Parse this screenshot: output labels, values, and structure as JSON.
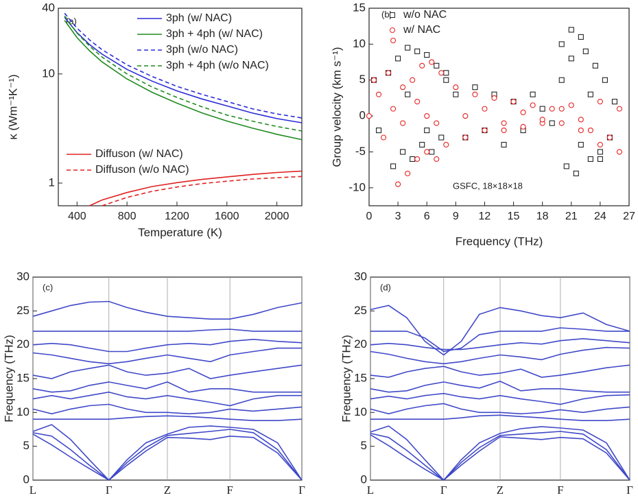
{
  "chart_data": [
    {
      "type": "line",
      "log_y": true,
      "xlabel": "Temperature (K)",
      "ylabel": "κ (Wm⁻¹K⁻¹)",
      "annotations": [
        "(a)"
      ],
      "x": [
        300,
        400,
        500,
        600,
        800,
        1000,
        1200,
        1400,
        1600,
        1800,
        2000,
        2200
      ],
      "xlim": [
        250,
        2200
      ],
      "xticks": [
        400,
        800,
        1200,
        1600,
        2000
      ],
      "ylim": [
        0.62,
        40
      ],
      "yticks": [
        1,
        10,
        40
      ],
      "series": [
        {
          "name": "3ph (w/ NAC)",
          "color": "#2b2bd6",
          "dashed": false,
          "legend_loc": "upper right",
          "values": [
            33,
            23.9,
            18.6,
            15.2,
            11.0,
            8.6,
            7.0,
            5.9,
            5.1,
            4.4,
            3.9,
            3.57
          ]
        },
        {
          "name": "3ph + 4ph (w/ NAC)",
          "color": "#1f8a1f",
          "dashed": false,
          "legend_loc": "upper right",
          "values": [
            31,
            21.5,
            16.3,
            12.9,
            9.0,
            6.8,
            5.4,
            4.4,
            3.7,
            3.2,
            2.8,
            2.5
          ]
        },
        {
          "name": "3ph (w/o NAC)",
          "color": "#2b2bd6",
          "dashed": true,
          "legend_loc": "upper right",
          "values": [
            36,
            26.3,
            20.5,
            16.7,
            12.1,
            9.5,
            7.7,
            6.5,
            5.6,
            4.8,
            4.3,
            3.95
          ]
        },
        {
          "name": "3ph + 4ph (w/o NAC)",
          "color": "#1f8a1f",
          "dashed": true,
          "legend_loc": "upper right",
          "values": [
            34,
            23.7,
            18,
            14.3,
            10,
            7.6,
            6.1,
            5.0,
            4.2,
            3.7,
            3.3,
            3.0
          ]
        },
        {
          "name": "Diffuson (w/ NAC)",
          "color": "#e02020",
          "dashed": false,
          "legend_loc": "lower left",
          "values": [
            null,
            null,
            0.62,
            0.7,
            0.82,
            0.93,
            1.01,
            1.08,
            1.14,
            1.2,
            1.25,
            1.29
          ]
        },
        {
          "name": "Diffuson (w/o NAC)",
          "color": "#e02020",
          "dashed": true,
          "legend_loc": "lower left",
          "values": [
            null,
            null,
            null,
            0.62,
            0.74,
            0.84,
            0.92,
            0.99,
            1.04,
            1.09,
            1.12,
            1.15
          ]
        }
      ]
    },
    {
      "type": "scatter",
      "xlabel": "Frequency (THz)",
      "ylabel": "Group velocity (km s⁻¹)",
      "annotations": [
        "(b)",
        "GSFC, 18×18×18"
      ],
      "xlim": [
        0,
        27
      ],
      "xticks": [
        0,
        3,
        6,
        9,
        12,
        15,
        18,
        21,
        24,
        27
      ],
      "ylim": [
        -12.5,
        15
      ],
      "yticks": [
        -10,
        -5,
        0,
        5,
        10,
        15
      ],
      "legend": "upper left",
      "series": [
        {
          "name": "w/o NAC",
          "color": "#222222",
          "marker": "square",
          "x": [
            0.5,
            1,
            2,
            3,
            3.5,
            4,
            4.5,
            5,
            5.5,
            6,
            6.5,
            7,
            7.5,
            8,
            9,
            10,
            11,
            12,
            13,
            14,
            15,
            16,
            17,
            18,
            19,
            20,
            20.5,
            21,
            21.5,
            22,
            22.5,
            23,
            23.5,
            24,
            24.5,
            25,
            25.5,
            2.5,
            4,
            6,
            8,
            20,
            21,
            22,
            23,
            24
          ],
          "values": [
            5,
            -2,
            6,
            8,
            -5,
            9.5,
            -6,
            9,
            -4,
            8.5,
            -5,
            7,
            -3,
            6,
            3,
            -3,
            4,
            -2,
            3,
            -4,
            2,
            -2,
            3,
            1,
            -1,
            10,
            -7,
            12,
            -8,
            11,
            9,
            -6,
            7,
            -5,
            5,
            -3,
            2,
            -7,
            3,
            -2,
            5,
            5,
            8,
            -4,
            3,
            -6
          ]
        },
        {
          "name": "w/ NAC",
          "color": "#e82020",
          "marker": "circle",
          "x": [
            0,
            0.5,
            1,
            1.5,
            2,
            2.5,
            3,
            3.5,
            4,
            4.5,
            5,
            5.5,
            6,
            6.5,
            7,
            7.5,
            8,
            9,
            10,
            11,
            12,
            13,
            14,
            15,
            16,
            17,
            18,
            19,
            20,
            21,
            22,
            23,
            24,
            25,
            26,
            2.5,
            3.5,
            5,
            6,
            7,
            10,
            12,
            14,
            16,
            18,
            20,
            22,
            24,
            26
          ],
          "values": [
            0,
            5,
            3,
            -3,
            6,
            10.5,
            -9.5,
            4,
            -8,
            5,
            -6,
            7,
            -5,
            7.5,
            -6,
            6,
            -4,
            4,
            -3,
            3,
            -2,
            2.5,
            -2,
            2,
            -1.5,
            1.5,
            -1,
            1,
            -1,
            1.5,
            -0.5,
            -2,
            2,
            -3,
            1,
            1,
            -1,
            2,
            0,
            -1,
            0,
            1,
            -1,
            0.5,
            -0.5,
            1,
            -2,
            -4,
            -5
          ]
        }
      ]
    },
    {
      "type": "line",
      "ylabel": "Frequency (THz)",
      "annotations": [
        "(c)"
      ],
      "color": "#3f48c8",
      "grid_x": true,
      "x": [
        0,
        0.07,
        0.14,
        0.21,
        0.2825,
        0.35,
        0.42,
        0.5,
        0.58,
        0.66,
        0.7325,
        0.82,
        0.91,
        1
      ],
      "xlim": [
        0,
        1
      ],
      "xticks": [
        {
          "value": 0,
          "label": "L"
        },
        {
          "value": 0.2825,
          "label": "Γ"
        },
        {
          "value": 0.5,
          "label": "Z"
        },
        {
          "value": 0.7325,
          "label": "F"
        },
        {
          "value": 1,
          "label": "Γ"
        }
      ],
      "ylim": [
        0,
        30
      ],
      "yticks": [
        0,
        5,
        10,
        15,
        20,
        25,
        30
      ],
      "series": [
        {
          "values": [
            6.8,
            5.2,
            3.4,
            1.7,
            0,
            2.2,
            4.3,
            6.3,
            6.2,
            6.0,
            6.5,
            6.3,
            4.0,
            0
          ]
        },
        {
          "values": [
            7.0,
            6.5,
            4.5,
            2.2,
            0,
            2.6,
            4.8,
            6.6,
            6.9,
            7.2,
            7.5,
            7.0,
            4.5,
            0
          ]
        },
        {
          "values": [
            7.2,
            8.2,
            6.0,
            3.0,
            0,
            3.0,
            5.5,
            6.8,
            7.8,
            8.0,
            7.8,
            7.5,
            5.5,
            0
          ]
        },
        {
          "values": [
            9.0,
            9.0,
            9.0,
            9.0,
            9.0,
            9.2,
            9.4,
            9.5,
            9.4,
            9.2,
            9.0,
            8.8,
            8.8,
            9.0
          ]
        },
        {
          "values": [
            10.5,
            9.8,
            10.5,
            11.0,
            11.2,
            10.5,
            10.0,
            10.0,
            9.8,
            10.0,
            10.5,
            10.2,
            10.5,
            10.8
          ]
        },
        {
          "values": [
            12,
            12.5,
            12.0,
            12.5,
            13.0,
            12.3,
            12.0,
            12.5,
            12.0,
            11.5,
            11.0,
            12.0,
            12.5,
            12.5
          ]
        },
        {
          "values": [
            13.5,
            13.0,
            13.2,
            14.0,
            14.5,
            14.0,
            13.5,
            14.5,
            13.0,
            13.5,
            13.5,
            13.0,
            13.0,
            13.0
          ]
        },
        {
          "values": [
            15.5,
            15.0,
            16.0,
            16.5,
            17.0,
            16.0,
            15.5,
            15.8,
            16.5,
            15.0,
            15.5,
            16.0,
            16.5,
            17.0
          ]
        },
        {
          "values": [
            18.8,
            18.5,
            18.0,
            17.5,
            17.2,
            17.5,
            18.0,
            18.5,
            18.0,
            17.5,
            18.5,
            19.0,
            19.5,
            19.5
          ]
        },
        {
          "values": [
            20.0,
            20.2,
            20.0,
            19.5,
            19.0,
            19.0,
            19.5,
            20.0,
            20.2,
            20.0,
            20.5,
            20.8,
            20.5,
            20.3
          ]
        },
        {
          "values": [
            22.0,
            22.0,
            22.0,
            22.0,
            22.0,
            22.0,
            22.0,
            22.0,
            22.0,
            22.2,
            22.3,
            22.0,
            22.0,
            22.0
          ]
        },
        {
          "values": [
            24.2,
            25.0,
            25.8,
            26.3,
            26.4,
            25.5,
            24.8,
            24.2,
            24.0,
            23.8,
            23.8,
            24.5,
            25.5,
            26.2
          ]
        }
      ]
    },
    {
      "type": "line",
      "ylabel": "Frequency (THz)",
      "annotations": [
        "(d)"
      ],
      "color": "#3f48c8",
      "grid_x": true,
      "x": [
        0,
        0.07,
        0.14,
        0.21,
        0.2825,
        0.35,
        0.42,
        0.5,
        0.58,
        0.66,
        0.7325,
        0.82,
        0.91,
        1
      ],
      "xlim": [
        0,
        1
      ],
      "xticks": [
        {
          "value": 0,
          "label": "L"
        },
        {
          "value": 0.2825,
          "label": "Γ"
        },
        {
          "value": 0.5,
          "label": "Z"
        },
        {
          "value": 0.7325,
          "label": "F"
        },
        {
          "value": 1,
          "label": "Γ"
        }
      ],
      "ylim": [
        0,
        30
      ],
      "yticks": [
        0,
        5,
        10,
        15,
        20,
        25,
        30
      ],
      "series": [
        {
          "values": [
            6.7,
            5.1,
            3.3,
            1.6,
            0,
            2.2,
            4.3,
            6.4,
            6.2,
            6.0,
            6.3,
            6.1,
            4.0,
            0
          ]
        },
        {
          "values": [
            6.9,
            6.3,
            4.4,
            2.2,
            0,
            2.6,
            4.8,
            6.6,
            6.8,
            7.0,
            7.2,
            6.8,
            4.5,
            0
          ]
        },
        {
          "values": [
            7.1,
            8.0,
            6.0,
            3.0,
            0,
            3.0,
            5.5,
            6.9,
            7.6,
            7.9,
            7.7,
            7.4,
            5.5,
            0
          ]
        },
        {
          "values": [
            9.0,
            9.0,
            9.0,
            9.0,
            9.0,
            9.2,
            9.5,
            9.6,
            9.4,
            9.2,
            9.0,
            8.8,
            8.8,
            9.0
          ]
        },
        {
          "values": [
            10.5,
            9.8,
            10.5,
            11.0,
            11.3,
            10.5,
            10.0,
            10.0,
            9.8,
            10.0,
            10.4,
            10.0,
            10.5,
            10.8
          ]
        },
        {
          "values": [
            12,
            12.4,
            12.0,
            12.5,
            12.8,
            12.3,
            12.0,
            12.5,
            12.0,
            11.6,
            11.2,
            12.0,
            12.5,
            12.6
          ]
        },
        {
          "values": [
            13.5,
            13.0,
            13.2,
            14.0,
            14.5,
            14.0,
            13.6,
            14.6,
            13.2,
            13.5,
            13.5,
            13.2,
            13.0,
            13.0
          ]
        },
        {
          "values": [
            15.5,
            15.2,
            16.0,
            16.5,
            16.8,
            16.0,
            15.5,
            15.8,
            16.4,
            15.2,
            15.5,
            16.0,
            16.6,
            17.0
          ]
        },
        {
          "values": [
            19.0,
            18.6,
            18.0,
            17.5,
            17.2,
            17.5,
            18.0,
            18.5,
            18.2,
            17.8,
            18.6,
            19.2,
            19.6,
            19.5
          ]
        },
        {
          "values": [
            20.0,
            20.2,
            20.0,
            19.6,
            19.3,
            19.3,
            19.6,
            20.0,
            20.3,
            20.1,
            20.6,
            20.9,
            20.6,
            20.3
          ]
        },
        {
          "values": [
            22.0,
            22.0,
            22.0,
            21.0,
            19.0,
            19.5,
            21.5,
            22.0,
            22.0,
            22.0,
            22.5,
            22.3,
            22.0,
            22.0
          ]
        },
        {
          "values": [
            25.2,
            25.8,
            24.0,
            20.5,
            18.5,
            20.5,
            24.5,
            25.5,
            25.0,
            24.3,
            24.0,
            24.7,
            23.0,
            22.0
          ]
        }
      ]
    }
  ]
}
